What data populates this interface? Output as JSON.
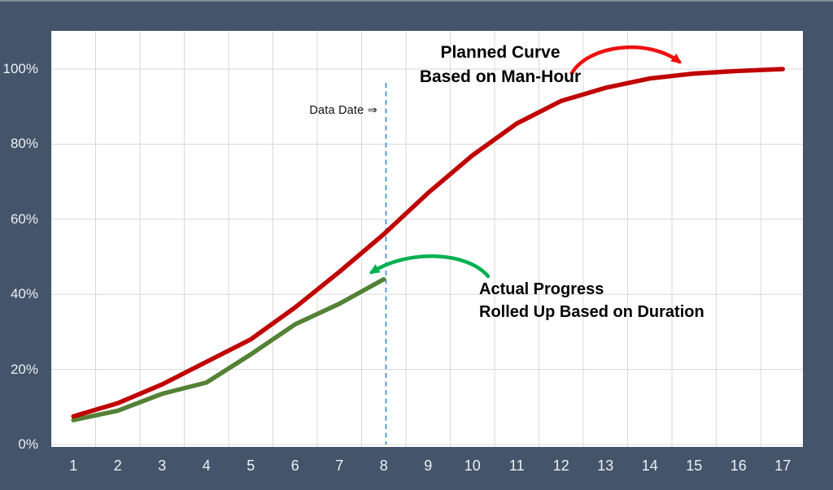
{
  "chart_data": {
    "type": "line",
    "title": "",
    "xlabel": "",
    "ylabel": "",
    "x_ticks": [
      "1",
      "2",
      "3",
      "4",
      "5",
      "6",
      "7",
      "8",
      "9",
      "10",
      "11",
      "12",
      "13",
      "14",
      "15",
      "16",
      "17"
    ],
    "y_ticks": [
      "0%",
      "20%",
      "40%",
      "60%",
      "80%",
      "100%"
    ],
    "y_tick_values": [
      0,
      20,
      40,
      60,
      80,
      100
    ],
    "ylim": [
      0,
      110
    ],
    "grid": true,
    "legend_position": "none",
    "series": [
      {
        "name": "Planned Curve Based on Man-Hour",
        "color": "#C00000",
        "x": [
          1,
          2,
          3,
          4,
          5,
          6,
          7,
          8,
          9,
          10,
          11,
          12,
          13,
          14,
          15,
          16,
          17
        ],
        "values": [
          7.5,
          11,
          16,
          22,
          28,
          36.5,
          46,
          56,
          67,
          77,
          85.5,
          91.5,
          95,
          97.5,
          98.8,
          99.5,
          100
        ]
      },
      {
        "name": "Actual Progress Rolled Up Based on Duration",
        "color": "#538135",
        "x": [
          1,
          2,
          3,
          4,
          5,
          6,
          7,
          8
        ],
        "values": [
          6.5,
          9,
          13.5,
          16.5,
          24,
          32,
          37.5,
          44
        ]
      }
    ],
    "data_date_x": 8.05
  },
  "annotations": {
    "data_date": "Data Date ⇒",
    "planned_line1": "Planned Curve",
    "planned_line2": "Based on Man-Hour",
    "actual_line1": "Actual Progress",
    "actual_line2": "Rolled Up Based on Duration"
  },
  "colors": {
    "background": "#44546A",
    "plot_background": "#FFFFFF",
    "gridline": "#D9D9D9",
    "planned_curve": "#C00000",
    "actual_curve": "#538135",
    "red_arrow": "#EE1111",
    "green_arrow": "#00B050",
    "data_date_line": "#5B9BD5",
    "axis_label_text": "#EEF1F5",
    "annotation_text": "#000000"
  }
}
